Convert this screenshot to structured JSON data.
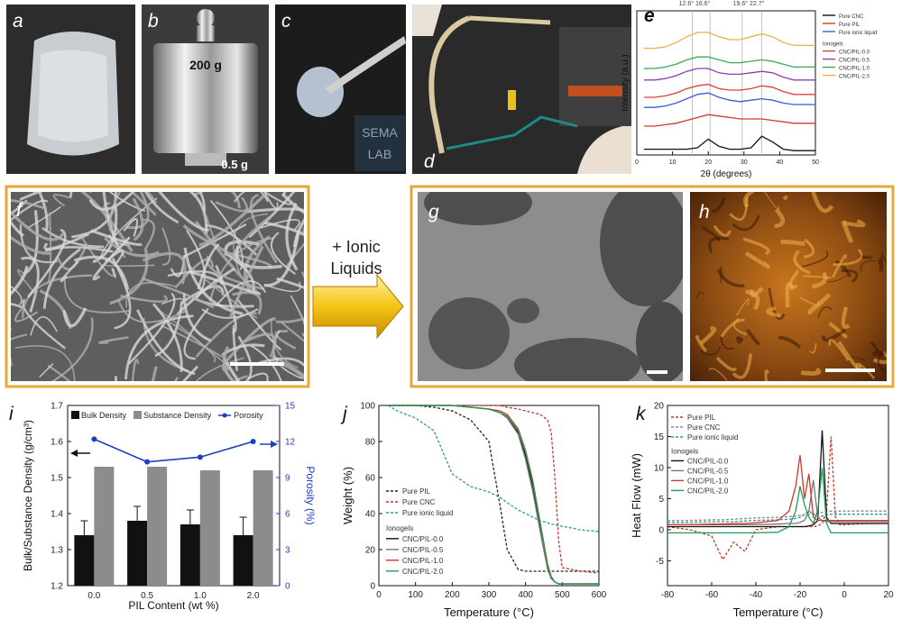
{
  "panel_labels": [
    "a",
    "b",
    "c",
    "d",
    "e",
    "f",
    "g",
    "h",
    "i",
    "j",
    "k"
  ],
  "photo_text": {
    "weight_large": "200 g",
    "weight_small": "0.5 g",
    "logo": [
      "SEMA",
      "LAB"
    ]
  },
  "arrow_text": [
    "+ Ionic",
    "Liquids"
  ],
  "chart_data": [
    {
      "type": "line",
      "xlabel": "2θ (degrees)",
      "ylabel": "Intensity (a.u.)",
      "annotations": [
        "12.6° 16.6°",
        "19.6° 22.7°"
      ],
      "x": [
        2,
        5,
        8,
        11,
        14,
        17,
        20,
        23,
        26,
        29,
        32,
        35,
        38,
        41,
        44,
        47,
        50
      ],
      "xlim": [
        0,
        50
      ],
      "xticks": [
        0,
        10,
        20,
        30,
        40,
        50
      ],
      "ylim": [
        0,
        100
      ],
      "vlines": [
        15.5,
        20.5,
        29.5,
        35
      ],
      "legend_heading": "Ionogels",
      "series": [
        {
          "name": "Pure CNC",
          "color": "#111111",
          "values": [
            4,
            4,
            4,
            4,
            4,
            5,
            11,
            6,
            4,
            4,
            5,
            13,
            9,
            4,
            3,
            3,
            3
          ]
        },
        {
          "name": "Pure PIL",
          "color": "#d4372c",
          "values": [
            20,
            20,
            21,
            22,
            24,
            26,
            28,
            27,
            26,
            25,
            25,
            25,
            24,
            23,
            22,
            22,
            22
          ]
        },
        {
          "name": "Pure ionic liquid",
          "color": "#3a5bd0",
          "values": [
            33,
            33,
            34,
            36,
            39,
            42,
            43,
            40,
            38,
            37,
            38,
            39,
            38,
            36,
            35,
            35,
            35
          ]
        },
        {
          "name": "CNC/PIL-0.0",
          "color": "#e0403a",
          "values": [
            40,
            40,
            41,
            43,
            46,
            48,
            49,
            46,
            45,
            45,
            46,
            48,
            47,
            44,
            42,
            42,
            42
          ]
        },
        {
          "name": "CNC/PIL-0.5",
          "color": "#8a3fb0",
          "values": [
            52,
            52,
            53,
            55,
            58,
            60,
            60,
            57,
            56,
            56,
            57,
            58,
            57,
            54,
            52,
            52,
            52
          ]
        },
        {
          "name": "CNC/PIL-1.0",
          "color": "#3aa858",
          "values": [
            60,
            60,
            61,
            63,
            66,
            68,
            68,
            66,
            64,
            64,
            65,
            66,
            65,
            63,
            61,
            61,
            61
          ]
        },
        {
          "name": "CNC/PIL-2.0",
          "color": "#f0b040",
          "values": [
            74,
            74,
            75,
            78,
            82,
            85,
            85,
            82,
            80,
            80,
            82,
            84,
            82,
            78,
            76,
            76,
            76
          ]
        }
      ]
    },
    {
      "type": "bar",
      "xlabel": "PIL Content (wt %)",
      "ylabel": "Bulk/Substance Density (g/cm³)",
      "y2label": "Porosity (%)",
      "categories": [
        "0.0",
        "0.5",
        "1.0",
        "2.0"
      ],
      "ylim": [
        1.2,
        1.7
      ],
      "yticks": [
        1.2,
        1.3,
        1.4,
        1.5,
        1.6,
        1.7
      ],
      "y2lim": [
        0,
        15
      ],
      "y2ticks": [
        0,
        3,
        6,
        9,
        12,
        15
      ],
      "series": [
        {
          "name": "Bulk Density",
          "color": "#111111",
          "values": [
            1.34,
            1.38,
            1.37,
            1.34
          ],
          "errors": [
            0.04,
            0.04,
            0.04,
            0.05
          ]
        },
        {
          "name": "Substance Density",
          "color": "#8c8c8c",
          "values": [
            1.53,
            1.53,
            1.52,
            1.52
          ]
        },
        {
          "name": "Porosity",
          "color": "#1f3fbf",
          "type": "line",
          "axis": "y2",
          "values": [
            12.2,
            10.3,
            10.7,
            12.0
          ]
        }
      ]
    },
    {
      "type": "line",
      "xlabel": "Temperature (°C)",
      "ylabel": "Weight (%)",
      "x": [
        25,
        50,
        100,
        150,
        200,
        250,
        300,
        330,
        350,
        380,
        400,
        420,
        440,
        460,
        470,
        480,
        490,
        500,
        550,
        600
      ],
      "xlim": [
        0,
        600
      ],
      "xticks": [
        0,
        100,
        200,
        300,
        400,
        500,
        600
      ],
      "ylim": [
        0,
        100
      ],
      "yticks": [
        0,
        20,
        40,
        60,
        80,
        100
      ],
      "legend_heading": "Ionogels",
      "series": [
        {
          "name": "Pure PIL",
          "color": "#222222",
          "dash": true,
          "values": [
            100,
            100,
            100,
            99,
            97,
            92,
            80,
            45,
            20,
            9,
            8,
            8,
            8,
            8,
            8,
            8,
            8,
            8,
            8,
            8
          ]
        },
        {
          "name": "Pure CNC",
          "color": "#c0392b",
          "dash": true,
          "values": [
            100,
            100,
            100,
            100,
            100,
            100,
            100,
            100,
            99,
            98,
            97,
            96,
            95,
            92,
            85,
            60,
            25,
            10,
            8,
            7
          ]
        },
        {
          "name": "Pure ionic liquid",
          "color": "#2a9d8f",
          "dash": true,
          "values": [
            100,
            97,
            93,
            86,
            62,
            55,
            52,
            49,
            46,
            42,
            40,
            38,
            36,
            35,
            34,
            34,
            33,
            33,
            31,
            30
          ]
        },
        {
          "name": "CNC/PIL-0.0",
          "color": "#111111",
          "values": [
            100,
            100,
            100,
            100,
            100,
            99,
            98,
            96,
            94,
            85,
            72,
            55,
            32,
            10,
            4,
            2,
            1,
            1,
            1,
            1
          ]
        },
        {
          "name": "CNC/PIL-0.5",
          "color": "#777777",
          "values": [
            100,
            100,
            100,
            100,
            100,
            99,
            98,
            96,
            93,
            84,
            70,
            52,
            30,
            9,
            4,
            2,
            1,
            1,
            1,
            1
          ]
        },
        {
          "name": "CNC/PIL-1.0",
          "color": "#d9342b",
          "values": [
            100,
            100,
            100,
            100,
            100,
            99,
            98,
            97,
            95,
            87,
            75,
            58,
            35,
            12,
            5,
            2,
            1,
            1,
            1,
            1
          ]
        },
        {
          "name": "CNC/PIL-2.0",
          "color": "#1f9b5a",
          "values": [
            100,
            100,
            100,
            100,
            100,
            99,
            98,
            96,
            94,
            86,
            74,
            57,
            34,
            11,
            4,
            2,
            1,
            1,
            1,
            1
          ]
        }
      ]
    },
    {
      "type": "line",
      "xlabel": "Temperature (°C)",
      "ylabel": "Heat Flow (mW)",
      "x": [
        -80,
        -70,
        -60,
        -55,
        -50,
        -45,
        -40,
        -30,
        -25,
        -22,
        -20,
        -18,
        -16,
        -14,
        -12,
        -10,
        -8,
        -6,
        -4,
        -2,
        0,
        10,
        20
      ],
      "xlim": [
        -80,
        20
      ],
      "xticks": [
        -80,
        -60,
        -40,
        -20,
        0,
        20
      ],
      "ylim": [
        -9,
        20
      ],
      "yticks": [
        -5,
        0,
        5,
        10,
        15,
        20
      ],
      "legend_heading": "Ionogels",
      "series": [
        {
          "name": "Pure PIL",
          "color": "#c0392b",
          "dash": true,
          "values": [
            0.5,
            0,
            -1,
            -4.8,
            -2,
            -3.5,
            0,
            0.5,
            0.5,
            0.5,
            0.5,
            0.5,
            0.5,
            0.5,
            0.6,
            1,
            3,
            15,
            2,
            0.8,
            0.8,
            1,
            1
          ]
        },
        {
          "name": "Pure CNC",
          "color": "#7f8c99",
          "dash": true,
          "values": [
            1.5,
            1.5,
            1.6,
            1.6,
            1.7,
            1.8,
            1.9,
            2,
            2.1,
            2.2,
            2.3,
            2.4,
            2.5,
            2.6,
            2.7,
            2.8,
            2.9,
            3,
            3,
            3,
            3,
            3,
            3
          ]
        },
        {
          "name": "Pure ionic liquid",
          "color": "#2a9d8f",
          "dash": true,
          "values": [
            1.2,
            1.2,
            1.3,
            1.3,
            1.3,
            1.4,
            1.5,
            1.6,
            1.7,
            1.8,
            2,
            2.5,
            3,
            2.5,
            2,
            2.2,
            2.4,
            2.5,
            2.5,
            2.5,
            2.5,
            2.5,
            2.5
          ]
        },
        {
          "name": "CNC/PIL-0.0",
          "color": "#111111",
          "values": [
            0.5,
            0.5,
            0.5,
            0.5,
            0.5,
            0.5,
            0.5,
            0.5,
            0.5,
            0.5,
            0.5,
            0.5,
            0.6,
            0.8,
            1.5,
            16,
            2,
            1,
            1,
            1,
            1,
            1,
            1
          ]
        },
        {
          "name": "CNC/PIL-0.5",
          "color": "#777777",
          "values": [
            0.8,
            0.8,
            0.8,
            0.8,
            0.8,
            0.8,
            0.8,
            0.9,
            1,
            1,
            1.2,
            1.5,
            3,
            8,
            2,
            1.5,
            1.3,
            1.3,
            1.3,
            1.3,
            1.3,
            1.3,
            1.3
          ]
        },
        {
          "name": "CNC/PIL-1.0",
          "color": "#d9342b",
          "values": [
            0.8,
            0.8,
            0.9,
            0.9,
            1,
            1,
            1.1,
            1.5,
            3,
            7,
            12,
            5,
            9,
            2,
            1.5,
            1.5,
            1.5,
            1.5,
            1.5,
            1.5,
            1.5,
            1.5,
            1.5
          ]
        },
        {
          "name": "CNC/PIL-2.0",
          "color": "#1f9b5a",
          "values": [
            -0.5,
            -0.5,
            -0.5,
            -0.5,
            -0.5,
            -0.5,
            -0.5,
            -0.4,
            0.5,
            3,
            7,
            4,
            2,
            1,
            3,
            10,
            1,
            -0.5,
            -0.5,
            -0.5,
            -0.5,
            -0.5,
            -0.5
          ]
        }
      ]
    }
  ]
}
